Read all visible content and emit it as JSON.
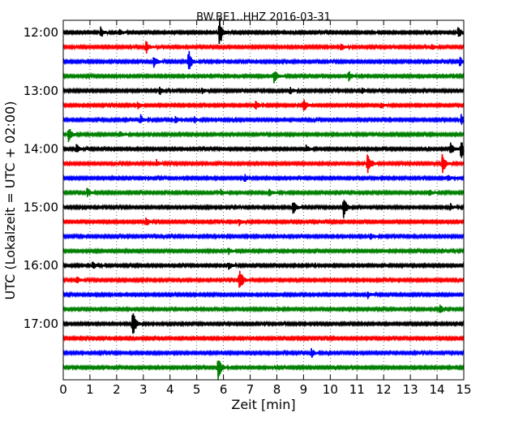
{
  "chart_data": {
    "type": "line",
    "title": "BW.BE1..HHZ 2016-03-31",
    "xlabel": "Zeit  [min]",
    "ylabel": "UTC (Lokalzeit = UTC + 02:00)",
    "xlim": [
      0,
      15
    ],
    "x_ticks": [
      0,
      1,
      2,
      3,
      4,
      5,
      6,
      7,
      8,
      9,
      10,
      11,
      12,
      13,
      14,
      15
    ],
    "y_tick_labels": [
      "12:00",
      "13:00",
      "14:00",
      "15:00",
      "16:00",
      "17:00"
    ],
    "trace_interval_minutes": 15,
    "grid": "vertical dotted at each minute",
    "series_colors": [
      "#000000",
      "#ff0000",
      "#0000ff",
      "#008000"
    ],
    "traces": [
      {
        "start": "12:00",
        "color": "#000000",
        "events": [
          [
            1.4,
            0.5
          ],
          [
            2.1,
            0.3
          ],
          [
            5.85,
            1.4
          ],
          [
            14.8,
            0.5
          ]
        ]
      },
      {
        "start": "12:15",
        "color": "#ff0000",
        "events": [
          [
            3.1,
            0.6
          ],
          [
            10.4,
            0.3
          ],
          [
            13.8,
            0.3
          ]
        ]
      },
      {
        "start": "12:30",
        "color": "#0000ff",
        "events": [
          [
            3.4,
            0.6
          ],
          [
            4.7,
            1.1
          ],
          [
            14.85,
            0.4
          ]
        ]
      },
      {
        "start": "12:45",
        "color": "#008000",
        "events": [
          [
            7.9,
            0.6
          ],
          [
            10.7,
            0.4
          ]
        ]
      },
      {
        "start": "13:00",
        "color": "#000000",
        "events": [
          [
            3.6,
            0.4
          ],
          [
            5.2,
            0.3
          ],
          [
            8.5,
            0.3
          ],
          [
            11.2,
            0.3
          ]
        ]
      },
      {
        "start": "13:15",
        "color": "#ff0000",
        "events": [
          [
            2.8,
            0.3
          ],
          [
            7.2,
            0.4
          ],
          [
            9.0,
            0.6
          ],
          [
            11.9,
            0.3
          ]
        ]
      },
      {
        "start": "13:30",
        "color": "#0000ff",
        "events": [
          [
            2.9,
            0.4
          ],
          [
            4.2,
            0.3
          ],
          [
            4.9,
            0.3
          ],
          [
            14.9,
            0.5
          ]
        ]
      },
      {
        "start": "13:45",
        "color": "#008000",
        "events": [
          [
            0.2,
            0.7
          ],
          [
            2.1,
            0.3
          ]
        ]
      },
      {
        "start": "14:00",
        "color": "#000000",
        "events": [
          [
            0.5,
            0.4
          ],
          [
            9.1,
            0.3
          ],
          [
            14.5,
            0.6
          ],
          [
            14.9,
            0.9
          ]
        ]
      },
      {
        "start": "14:15",
        "color": "#ff0000",
        "events": [
          [
            3.5,
            0.3
          ],
          [
            11.4,
            1.2
          ],
          [
            14.2,
            1.0
          ]
        ]
      },
      {
        "start": "14:30",
        "color": "#0000ff",
        "events": [
          [
            6.8,
            0.3
          ],
          [
            14.4,
            0.3
          ]
        ]
      },
      {
        "start": "14:45",
        "color": "#008000",
        "events": [
          [
            0.9,
            0.4
          ],
          [
            5.9,
            0.3
          ],
          [
            7.7,
            0.3
          ],
          [
            13.7,
            0.3
          ]
        ]
      },
      {
        "start": "15:00",
        "color": "#000000",
        "events": [
          [
            8.6,
            0.7
          ],
          [
            10.5,
            1.0
          ],
          [
            14.5,
            0.3
          ]
        ]
      },
      {
        "start": "15:15",
        "color": "#ff0000",
        "events": [
          [
            3.1,
            0.4
          ],
          [
            6.6,
            0.3
          ]
        ]
      },
      {
        "start": "15:30",
        "color": "#0000ff",
        "events": [
          [
            11.5,
            0.3
          ]
        ]
      },
      {
        "start": "15:45",
        "color": "#008000",
        "events": [
          [
            6.2,
            0.3
          ]
        ]
      },
      {
        "start": "16:00",
        "color": "#000000",
        "events": [
          [
            1.1,
            0.3
          ],
          [
            6.2,
            0.3
          ]
        ]
      },
      {
        "start": "16:15",
        "color": "#ff0000",
        "events": [
          [
            0.5,
            0.3
          ],
          [
            6.6,
            1.2
          ]
        ]
      },
      {
        "start": "16:30",
        "color": "#0000ff",
        "events": [
          [
            11.4,
            0.3
          ]
        ]
      },
      {
        "start": "16:45",
        "color": "#008000",
        "events": [
          [
            14.1,
            0.4
          ]
        ]
      },
      {
        "start": "17:00",
        "color": "#000000",
        "events": [
          [
            2.6,
            1.3
          ]
        ]
      },
      {
        "start": "17:15",
        "color": "#ff0000",
        "events": []
      },
      {
        "start": "17:30",
        "color": "#0000ff",
        "events": [
          [
            9.3,
            0.4
          ]
        ]
      },
      {
        "start": "17:45",
        "color": "#008000",
        "events": [
          [
            5.8,
            1.2
          ]
        ]
      }
    ]
  }
}
